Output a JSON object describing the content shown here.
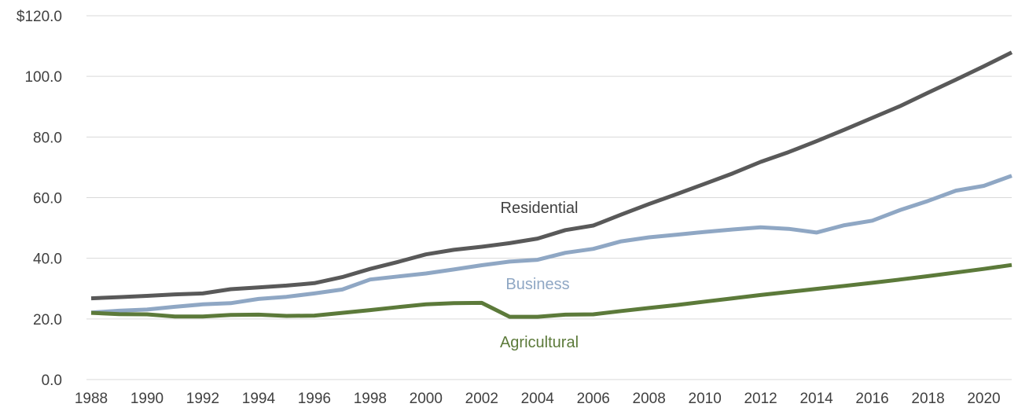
{
  "chart_data": {
    "type": "line",
    "x": [
      1988,
      1989,
      1990,
      1991,
      1992,
      1993,
      1994,
      1995,
      1996,
      1997,
      1998,
      1999,
      2000,
      2001,
      2002,
      2003,
      2004,
      2005,
      2006,
      2007,
      2008,
      2009,
      2010,
      2011,
      2012,
      2013,
      2014,
      2015,
      2016,
      2017,
      2018,
      2019,
      2020,
      2021
    ],
    "x_tick_labels": [
      "1988",
      "1990",
      "1992",
      "1994",
      "1996",
      "1998",
      "2000",
      "2002",
      "2004",
      "2006",
      "2008",
      "2010",
      "2012",
      "2014",
      "2016",
      "2018",
      "2020"
    ],
    "y_tick_labels": [
      "0.0",
      "20.0",
      "40.0",
      "60.0",
      "80.0",
      "100.0",
      "$120.0"
    ],
    "y_ticks": [
      0,
      20,
      40,
      60,
      80,
      100,
      120
    ],
    "ylim": [
      0,
      120
    ],
    "grid": "horizontal",
    "series": [
      {
        "name": "Residential",
        "color": "#595959",
        "values": [
          26.8,
          27.2,
          27.6,
          28.1,
          28.4,
          29.8,
          30.4,
          31.0,
          31.8,
          33.8,
          36.5,
          38.8,
          41.3,
          42.8,
          43.8,
          45.0,
          46.5,
          49.3,
          50.8,
          54.4,
          57.9,
          61.2,
          64.6,
          68.0,
          71.8,
          75.0,
          78.6,
          82.4,
          86.3,
          90.2,
          94.6,
          98.9,
          103.3,
          107.9
        ]
      },
      {
        "name": "Business",
        "color": "#8fa7c4",
        "values": [
          22.1,
          22.7,
          23.1,
          24.0,
          24.8,
          25.2,
          26.6,
          27.3,
          28.4,
          29.7,
          33.0,
          34.0,
          35.0,
          36.3,
          37.7,
          38.9,
          39.5,
          41.8,
          43.1,
          45.6,
          46.9,
          47.8,
          48.7,
          49.5,
          50.2,
          49.7,
          48.5,
          50.9,
          52.4,
          55.9,
          58.9,
          62.3,
          63.9,
          67.2
        ]
      },
      {
        "name": "Agricultural",
        "color": "#5c7a3a",
        "values": [
          22.0,
          21.6,
          21.5,
          20.8,
          20.8,
          21.3,
          21.4,
          21.0,
          21.1,
          22.0,
          22.9,
          23.9,
          24.8,
          25.2,
          25.3,
          20.7,
          20.7,
          21.4,
          21.5,
          22.6,
          23.6,
          24.6,
          25.7,
          26.8,
          27.9,
          28.9,
          29.9,
          30.9,
          31.9,
          33.0,
          34.1,
          35.3,
          36.5,
          37.8
        ]
      }
    ]
  }
}
